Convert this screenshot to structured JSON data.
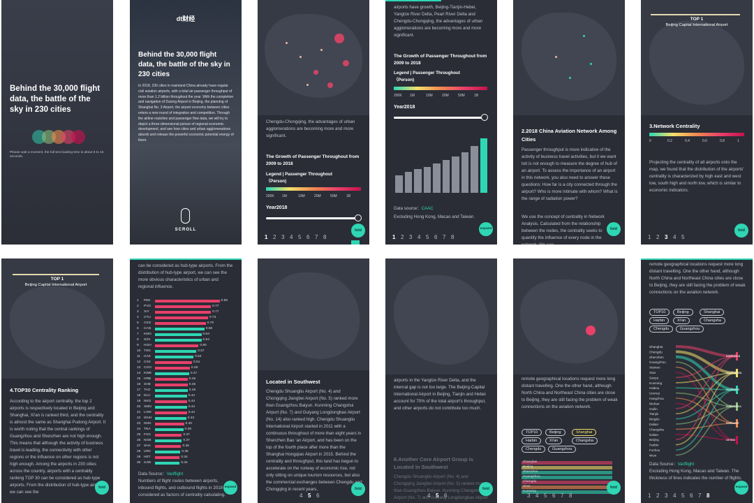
{
  "p1": {
    "title": "Behind the 30,000 flight data, the battle of the sky in 230 cities",
    "loading": "Please wait a moment, the full text loading time is about 8 to 15 seconds."
  },
  "p2": {
    "logo": "dt财经",
    "title": "Behind the 30,000 flight data, the battle of the sky in 230 cities",
    "body": "In 2018, 230 cities in mainland China already have regular civil aviation airports, with a total air passenger throughput of more than 1.2 billion throughout the year. With the completion and navigation of Daxing Airport in Beijing, the planning of Shanghai No. 3 Airport, the airport economy between cities enters a new round of integration and competition. Through the airline routeline and passenger flow data, we will try to depict a three-dimensional picture of regional economic development, and see how cities and urban agglomerations absorb and release the powerful economic potential energy of them.",
    "scroll": "SCROLL"
  },
  "p3": {
    "text": "Chengdu-Chongqing, the advantages of urban agglomerations are becoming more and more significant.",
    "heading": "The Growth of Passenger Throughout from 2009 to 2018",
    "legend": "Legend | Passenger Throughout（Person)",
    "ticks": [
      "200K",
      "1M",
      "10M",
      "20M",
      "50M",
      "1B"
    ],
    "year": "Year2018",
    "pages": [
      "1",
      "2",
      "3",
      "4",
      "5",
      "6",
      "7",
      "8"
    ],
    "fold": "fold"
  },
  "p4": {
    "text": "airports have growth, Beijing-Tianjin-Hebei, Yangtze River Delta, Pearl River Delta and Chengdu-Chongqing, the advantages of urban agglomerations are becoming more and more significant.",
    "heading": "The Growth of Passenger Throughout from 2009 to 2018",
    "legend": "Legend | Passenger Throughout（Person)",
    "ticks": [
      "200K",
      "1M",
      "10M",
      "20M",
      "50M",
      "1B"
    ],
    "year": "Year2018",
    "bars": [
      0.32,
      0.38,
      0.43,
      0.48,
      0.54,
      0.6,
      0.67,
      0.75,
      0.86,
      1.0
    ],
    "source_label": "Data source：",
    "source": "CAAC",
    "note": "Excluding Hong Kong, Macao and Taiwan.",
    "pages": [
      "1",
      "2",
      "3",
      "4",
      "5",
      "6",
      "7",
      "8"
    ],
    "expand": "expand"
  },
  "p5": {
    "heading": "2.2018 China Aviation Network Among Cities",
    "text1": "Passenger throughput is more indicative of the activity of business travel activities, but it we want toit is not enough to measure the degree of hub of an airport. To assess the importance of an airport in this network, you also need to answer these questions: How far is a city connected through the airport? Who is more intimate with whom? What is the range of radiation power?",
    "text2": "We use the concept of centrality in Network Analysis. Calculated from the relationship between the nodes, the centrality seeks to quantify the influence of every node in the network. We can",
    "fold": "fold"
  },
  "p6": {
    "top": "TOP 1",
    "airport": "Beijing Capital International Airport",
    "heading": "3.Network Centrality",
    "ticks": [
      "0",
      "0.2",
      "0.4",
      "0.6",
      "0.8",
      "1"
    ],
    "text": "Projecting the centrality of all airports onto the map, we found that the distribution of the airports' centrality is characterized by high east and west low, south high and north low, which is similar to economic indicators.",
    "pages": [
      "1",
      "2",
      "3",
      "4",
      "5"
    ],
    "fold": "fold"
  },
  "p7": {
    "top": "TOP 1",
    "airport": "Beijing Capital International Airport",
    "heading": "4.TOP30 Centrality Ranking",
    "text": "According to the airport centrality, the top 2 airports is respectively located in Beijing and Shanghai, Xi'an is ranked third, and the centrality is almost the same as Shanghai Pudong Airport. It is worth noting that the central rankings of Guangzhou and Shenzhen are not high enough. This means that although the activity of business travel is leading, the connectivity with other regions or the influence on other regions is not high enough. Among the airports in 230 cities across the country, airports with a centrality ranking TOP 30 can be considered as hub-type airports. From the distribution of hub-type airport, we can see the",
    "fold": "fold"
  },
  "p8": {
    "text": "can be considered as hub-type airports. From the distribution of hub-type airport, we can see the more obvious characteristics of urban and regional influence.",
    "source_label": "Data Source：",
    "source": "Variflight",
    "note": "Numbers of flight routes between airports, inbound flights, and outbound flights in 2018 are considered as factors of centrality calculating.",
    "expand": "expand"
  },
  "chart_data": {
    "type": "bar",
    "title": "",
    "categories": [
      "PEK",
      "PVG",
      "XIY",
      "CTU",
      "CKG",
      "CAN",
      "KMG",
      "SZX",
      "HGH",
      "TSN",
      "HAK",
      "CSX",
      "CGO",
      "KWE",
      "HRB",
      "SHE",
      "TAO",
      "DLC",
      "NKG",
      "XMN",
      "LHW",
      "WUH",
      "NNG",
      "TNA",
      "FOC",
      "NGB",
      "SHA",
      "URC",
      "HET",
      "SJW"
    ],
    "ranks": [
      1,
      2,
      3,
      4,
      5,
      6,
      7,
      8,
      9,
      10,
      11,
      12,
      13,
      14,
      15,
      16,
      17,
      18,
      19,
      20,
      21,
      22,
      23,
      24,
      25,
      26,
      27,
      28,
      29,
      30
    ],
    "values": [
      0.89,
      0.77,
      0.77,
      0.73,
      0.7,
      0.68,
      0.64,
      0.64,
      0.6,
      0.57,
      0.53,
      0.51,
      0.48,
      0.47,
      0.45,
      0.45,
      0.45,
      0.44,
      0.44,
      0.44,
      0.44,
      0.43,
      0.4,
      0.39,
      0.37,
      0.37,
      0.36,
      0.35,
      0.34,
      0.34
    ],
    "colors": [
      "#e8406a",
      "#e8406a",
      "#e8406a",
      "#e8406a",
      "#e8406a",
      "#2fd6b4",
      "#2fd6b4",
      "#2fd6b4",
      "#e8406a",
      "#2fd6b4",
      "#2fd6b4",
      "#e8406a",
      "#e8406a",
      "#2fd6b4",
      "#e8406a",
      "#e8406a",
      "#2fd6b4",
      "#2fd6b4",
      "#e8406a",
      "#2fd6b4",
      "#e8406a",
      "#2fd6b4",
      "#e8406a",
      "#2fd6b4",
      "#e8406a",
      "#2fd6b4",
      "#e8406a",
      "#2fd6b4",
      "#e8406a",
      "#2fd6b4"
    ],
    "xlim": [
      0,
      1
    ]
  },
  "p9": {
    "heading": "Located in Southwest",
    "text": "Chengdu Shuangliu Airport (No. 4) and Chongqing Jiangbei Airport (No. 5) ranked more than Guangzhou Baiyun. Kunming Changshui Airport (No. 7) and Guiyang Longdongbao Airport (No. 14) also ranked high. Chengdu Shuangliu International Airport started in 2011 with a continuous throughout of more than eight years in Shenzhen Bao 'an Airport, and has been on the top of the fourth place after more than the Shanghai Hongqiao Airport in 2015. Behind the centrality and throughput, this land has begun to accelerate on the runway of economic rise, not only sitting on unique tourism resources, but also the commercial exchanges between Chengdu and Chongqing in recent years,",
    "pages": [
      "4",
      "5",
      "6"
    ],
    "fold": "fold"
  },
  "p10": {
    "text": "airports in the Yangtze River Delta, and the internal gap is not too large. The Beijing-Capital International Airport in Beijing, Tianjin and Hebei account for 70% of the total airport's throughput, and other airports do not contribute too much.",
    "heading": "6.Another Core Airport Group is Located in Southwest",
    "text2": "Chengdu Shuangliu Airport (No. 4) and Chongqing Jiangbei Airport (No. 5) ranked more than Guangzhou Baiyun. Kunming Changshui Airport (No. 7) and Guiyang Longdongbao Airport",
    "pages": [
      "4",
      "5",
      "6"
    ],
    "fold": "fold"
  },
  "p11": {
    "text": "remote geographical locations request more long distant travelling. One the other hand, although North China and Northeast China cities are close to Beijing, they are still facing the problem of weak connections on the aviation network.",
    "tags": [
      "TOP10",
      "Beijing",
      "Shanghai",
      "Harbin",
      "Xi'an",
      "Changsha",
      "Chengdu",
      "Guangzhou"
    ],
    "selected": "Shanghai",
    "flows": [
      "Shanghai",
      "Beijing",
      "Shenzhen",
      "Guangzhou",
      "Chengdu",
      "Xi'an",
      "Kunming"
    ],
    "pages": [
      "3",
      "4",
      "5",
      "6",
      "7",
      "8"
    ],
    "fold": "fold"
  },
  "p12": {
    "text": "remote geographical locations request more long distant travelling. One the other hand, although North China and Northeast China cities are close to Beijing, they are still facing the problem of weak connections on the aviation network.",
    "tags": [
      "TOP10",
      "Beijing",
      "Shanghai",
      "Harbin",
      "Xi'an",
      "Changsha",
      "Chengdu",
      "Guangzhou"
    ],
    "sources": [
      "Shanghai",
      "Chengdu",
      "Shenzhen",
      "Guangzhou",
      "Xiamen",
      "Xian",
      "Sanya",
      "Kunming",
      "Haikou",
      "Urumqi",
      "Hangzhou",
      "Wuhan",
      "Guilin",
      "Tianjin",
      "Ningbo",
      "Dalian",
      "Changsha",
      "Dalian",
      "Beijing",
      "Harbin",
      "Fuzhou",
      "Wuxi"
    ],
    "targets": [
      "east/China",
      "south/China",
      "southwest",
      "north/China",
      "northwest",
      "central"
    ],
    "source_label": "Data Source：",
    "source": "Variflight",
    "note": "Excluding Hong Kong, Macao and Taiwan. The thickness of lines indicates the number of flights.",
    "pages": [
      "1",
      "2",
      "3",
      "4",
      "5",
      "6",
      "7",
      "8"
    ],
    "expand": "expand"
  }
}
